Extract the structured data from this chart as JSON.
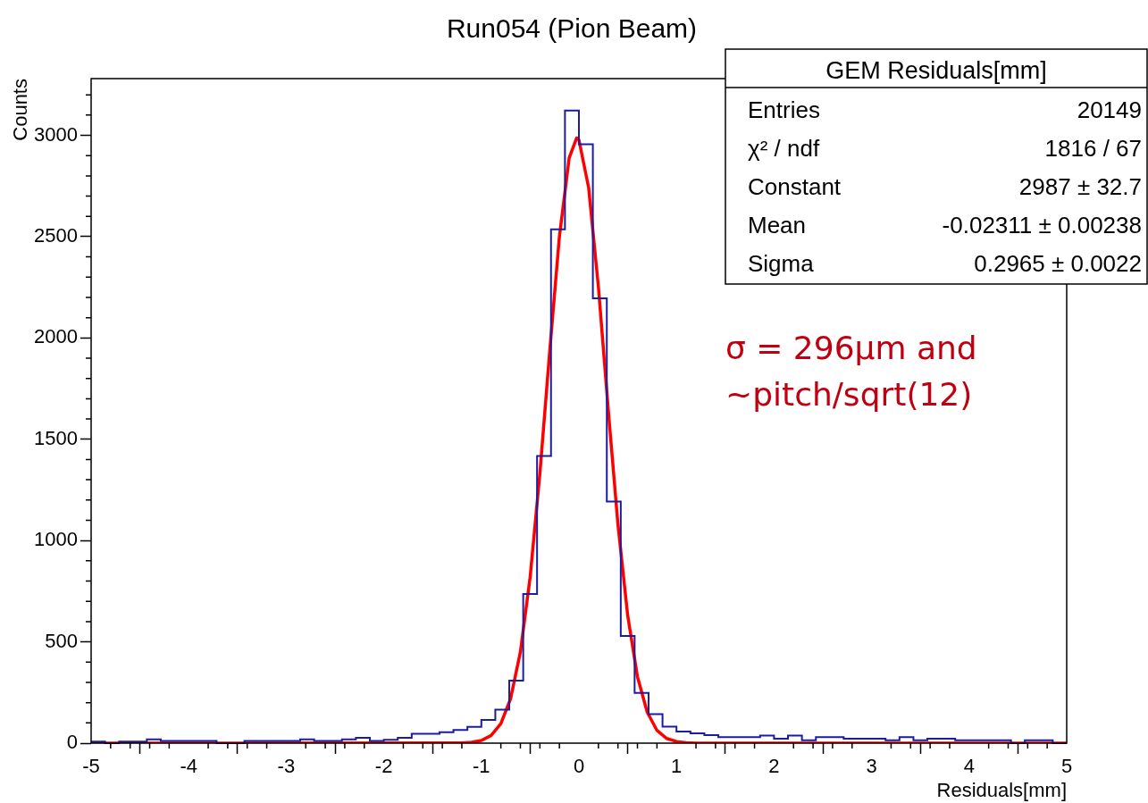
{
  "chart_data": {
    "type": "histogram",
    "title": "Run054 (Pion Beam)",
    "xlabel": "Residuals[mm]",
    "ylabel": "Counts",
    "xlim": [
      -5,
      5
    ],
    "xticks": [
      -5,
      -4,
      -3,
      -2,
      -1,
      0,
      1,
      2,
      3,
      4,
      5
    ],
    "ylim": [
      0,
      3280
    ],
    "yticks": [
      0,
      500,
      1000,
      1500,
      2000,
      2500,
      3000
    ],
    "series": [
      {
        "type": "histogram",
        "color": "#1c1ca0",
        "bins": [
          -5,
          -4.857,
          -4.714,
          -4.571,
          -4.429,
          -4.286,
          -4.143,
          -4,
          -3.857,
          -3.714,
          -3.571,
          -3.429,
          -3.286,
          -3.143,
          -3,
          -2.857,
          -2.714,
          -2.571,
          -2.429,
          -2.286,
          -2.143,
          -2,
          -1.857,
          -1.714,
          -1.571,
          -1.429,
          -1.286,
          -1.143,
          -1,
          -0.857,
          -0.714,
          -0.571,
          -0.429,
          -0.286,
          -0.143,
          0,
          0.143,
          0.286,
          0.429,
          0.571,
          0.714,
          0.857,
          1,
          1.143,
          1.286,
          1.429,
          1.571,
          1.714,
          1.857,
          2,
          2.143,
          2.286,
          2.429,
          2.571,
          2.714,
          2.857,
          3,
          3.143,
          3.286,
          3.429,
          3.571,
          3.714,
          3.857,
          4,
          4.143,
          4.286,
          4.429,
          4.571,
          4.714,
          4.857,
          5
        ],
        "values": [
          8,
          0,
          8,
          8,
          19,
          11,
          11,
          11,
          11,
          0,
          0,
          11,
          11,
          11,
          11,
          19,
          11,
          11,
          19,
          27,
          11,
          16,
          27,
          46,
          46,
          54,
          65,
          80,
          115,
          165,
          309,
          736,
          1417,
          2536,
          3122,
          2956,
          2196,
          1192,
          529,
          248,
          143,
          82,
          57,
          49,
          40,
          30,
          30,
          30,
          38,
          22,
          38,
          14,
          30,
          30,
          22,
          22,
          22,
          14,
          30,
          14,
          22,
          22,
          14,
          14,
          14,
          14,
          0,
          14,
          14,
          0
        ]
      },
      {
        "type": "line",
        "color": "#ff0000",
        "x": [
          -5,
          -1.2,
          -1.1,
          -1,
          -0.9,
          -0.8,
          -0.7,
          -0.6,
          -0.5,
          -0.4,
          -0.3,
          -0.2,
          -0.1,
          -0.023,
          0,
          0.1,
          0.2,
          0.3,
          0.4,
          0.5,
          0.6,
          0.7,
          0.8,
          0.9,
          1,
          1.1,
          1.2,
          5
        ],
        "values": [
          0,
          1,
          4,
          13,
          38,
          96,
          220,
          450,
          819,
          1331,
          1930,
          2500,
          2888,
          2987,
          2978,
          2741,
          2251,
          1650,
          1080,
          630,
          328,
          153,
          63,
          23,
          8,
          2,
          0,
          0
        ]
      }
    ],
    "annotations": [
      "GEM Residuals[mm]",
      "Entries",
      "20149",
      "χ² / ndf",
      "1816 / 67",
      "Constant",
      "2987 ± 32.7",
      "Mean",
      "-0.02311 ± 0.00238",
      "Sigma",
      "0.2965 ± 0.0022",
      "σ = 296µm and",
      "~pitch/sqrt(12)"
    ]
  }
}
